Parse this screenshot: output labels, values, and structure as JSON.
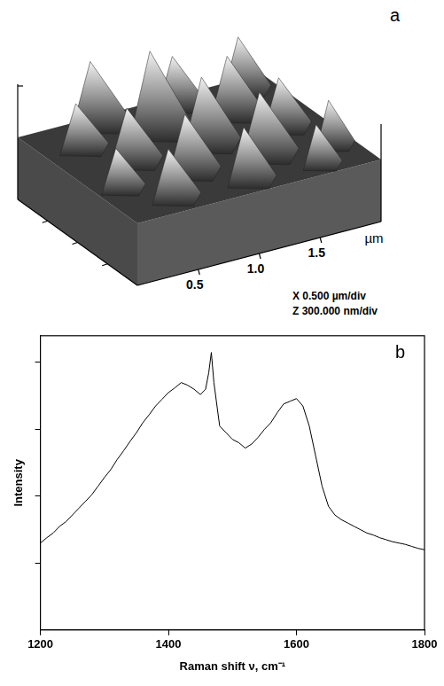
{
  "afm_image": {
    "letter": "a",
    "axis_unit": "µm",
    "xlim": [
      0,
      2
    ],
    "axis_ticks": [
      0.5,
      {
        "value": 1,
        "label": "1.0"
      },
      1.5
    ],
    "scale_notes": [
      "X 0.500 µm/div",
      "Z 300.000 nm/div"
    ]
  },
  "chart_data": {
    "type": "line",
    "annotations": [
      "b"
    ],
    "x_label": "Raman shift ν, cm⁻¹",
    "y_label": "Intensity",
    "x": [
      1200,
      1210,
      1220,
      1230,
      1240,
      1250,
      1260,
      1270,
      1280,
      1290,
      1300,
      1310,
      1320,
      1330,
      1340,
      1350,
      1360,
      1370,
      1380,
      1390,
      1400,
      1410,
      1420,
      1430,
      1440,
      1450,
      1458,
      1463,
      1467,
      1471,
      1480,
      1490,
      1500,
      1510,
      1520,
      1530,
      1540,
      1550,
      1560,
      1570,
      1580,
      1590,
      1600,
      1610,
      1620,
      1630,
      1640,
      1650,
      1660,
      1670,
      1680,
      1690,
      1700,
      1710,
      1720,
      1730,
      1740,
      1750,
      1760,
      1770,
      1780,
      1790,
      1800
    ],
    "values": [
      1.3,
      1.38,
      1.45,
      1.55,
      1.62,
      1.72,
      1.82,
      1.92,
      2.02,
      2.15,
      2.28,
      2.4,
      2.55,
      2.68,
      2.82,
      2.95,
      3.1,
      3.22,
      3.35,
      3.45,
      3.55,
      3.62,
      3.7,
      3.66,
      3.6,
      3.52,
      3.6,
      3.85,
      4.15,
      3.7,
      3.05,
      2.95,
      2.85,
      2.8,
      2.72,
      2.78,
      2.88,
      3.0,
      3.1,
      3.25,
      3.38,
      3.42,
      3.46,
      3.35,
      3.05,
      2.6,
      2.15,
      1.85,
      1.72,
      1.65,
      1.6,
      1.55,
      1.5,
      1.45,
      1.42,
      1.38,
      1.35,
      1.32,
      1.3,
      1.28,
      1.25,
      1.22,
      1.2
    ],
    "color": "#000000",
    "marker": "none",
    "xlim": [
      1200,
      1800
    ],
    "xticks": [
      1200,
      1400,
      1600,
      1800
    ],
    "ylim": [
      0,
      4.4
    ],
    "yticks": [
      1,
      2,
      3,
      4
    ],
    "grid": false,
    "tick_labels": "x"
  }
}
